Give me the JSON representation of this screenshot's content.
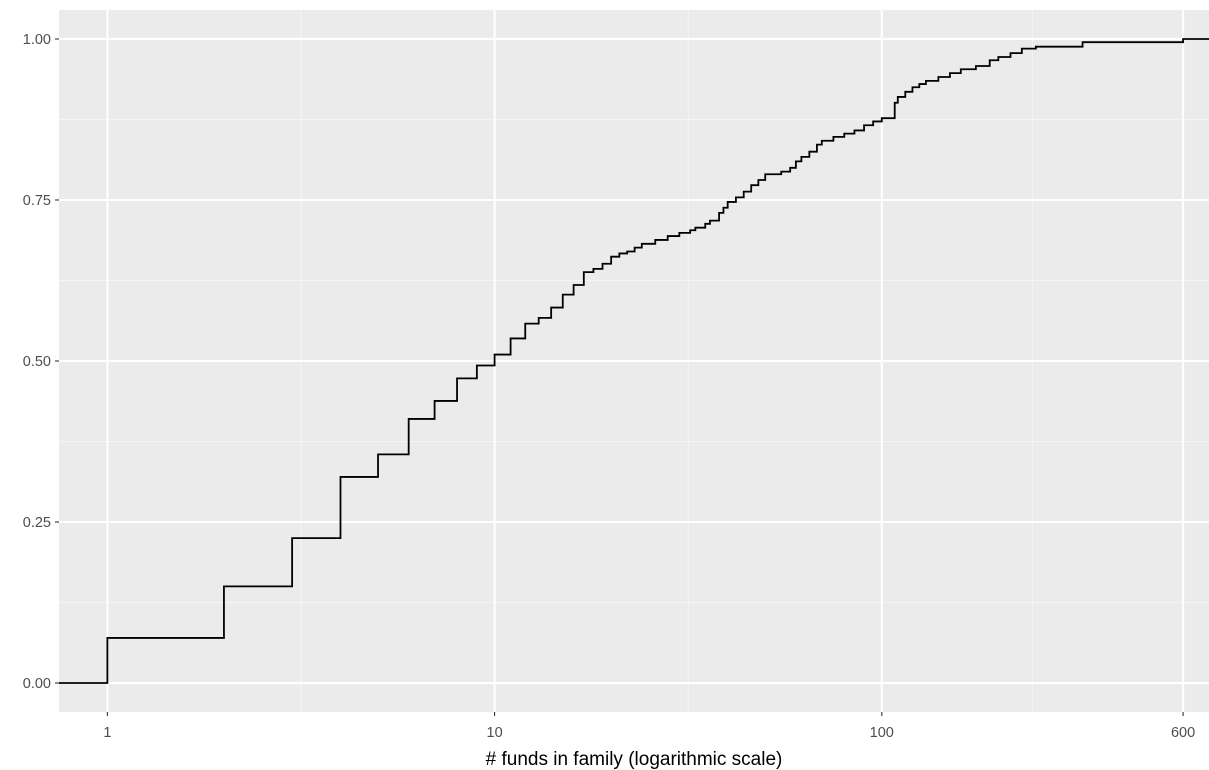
{
  "chart_data": {
    "type": "line",
    "subtype": "step",
    "title": "",
    "xlabel": "# funds in family (logarithmic scale)",
    "ylabel": "",
    "x_scale": "log10",
    "xlim": [
      0.75,
      700
    ],
    "ylim": [
      -0.045,
      1.045
    ],
    "x_ticks": [
      1,
      10,
      100,
      600
    ],
    "x_tick_labels": [
      "1",
      "10",
      "100",
      "600"
    ],
    "y_ticks": [
      0,
      0.25,
      0.5,
      0.75,
      1
    ],
    "y_tick_labels": [
      "0.00",
      "0.25",
      "0.50",
      "0.75",
      "1.00"
    ],
    "grid": true,
    "legend": "none",
    "colors": {
      "panel_background": "#ebebeb",
      "grid_major": "#ffffff",
      "grid_minor": "#f5f5f5",
      "line": "#000000",
      "tick_label": "#4d4d4d",
      "axis_title": "#000000"
    },
    "series": [
      {
        "x": [
          1,
          2,
          3,
          4,
          5,
          6,
          7,
          8,
          9,
          10,
          11,
          12,
          13,
          14,
          15,
          16,
          17,
          18,
          19,
          20,
          21,
          22,
          23,
          24,
          26,
          28,
          30,
          32,
          33,
          35,
          36,
          38,
          39,
          40,
          42,
          44,
          46,
          48,
          50,
          55,
          58,
          60,
          62,
          65,
          68,
          70,
          75,
          80,
          85,
          90,
          95,
          100,
          108,
          110,
          115,
          120,
          125,
          130,
          140,
          150,
          160,
          175,
          190,
          200,
          215,
          230,
          250,
          330,
          600
        ],
        "y": [
          0.07,
          0.15,
          0.225,
          0.32,
          0.355,
          0.41,
          0.438,
          0.473,
          0.493,
          0.51,
          0.535,
          0.558,
          0.567,
          0.583,
          0.603,
          0.618,
          0.638,
          0.643,
          0.651,
          0.662,
          0.667,
          0.67,
          0.676,
          0.682,
          0.688,
          0.694,
          0.699,
          0.703,
          0.707,
          0.713,
          0.718,
          0.73,
          0.738,
          0.747,
          0.754,
          0.763,
          0.773,
          0.781,
          0.79,
          0.794,
          0.8,
          0.81,
          0.817,
          0.825,
          0.836,
          0.842,
          0.848,
          0.853,
          0.858,
          0.866,
          0.872,
          0.877,
          0.901,
          0.91,
          0.918,
          0.925,
          0.93,
          0.935,
          0.941,
          0.947,
          0.953,
          0.958,
          0.967,
          0.972,
          0.978,
          0.985,
          0.988,
          0.995,
          1.0
        ]
      }
    ]
  }
}
